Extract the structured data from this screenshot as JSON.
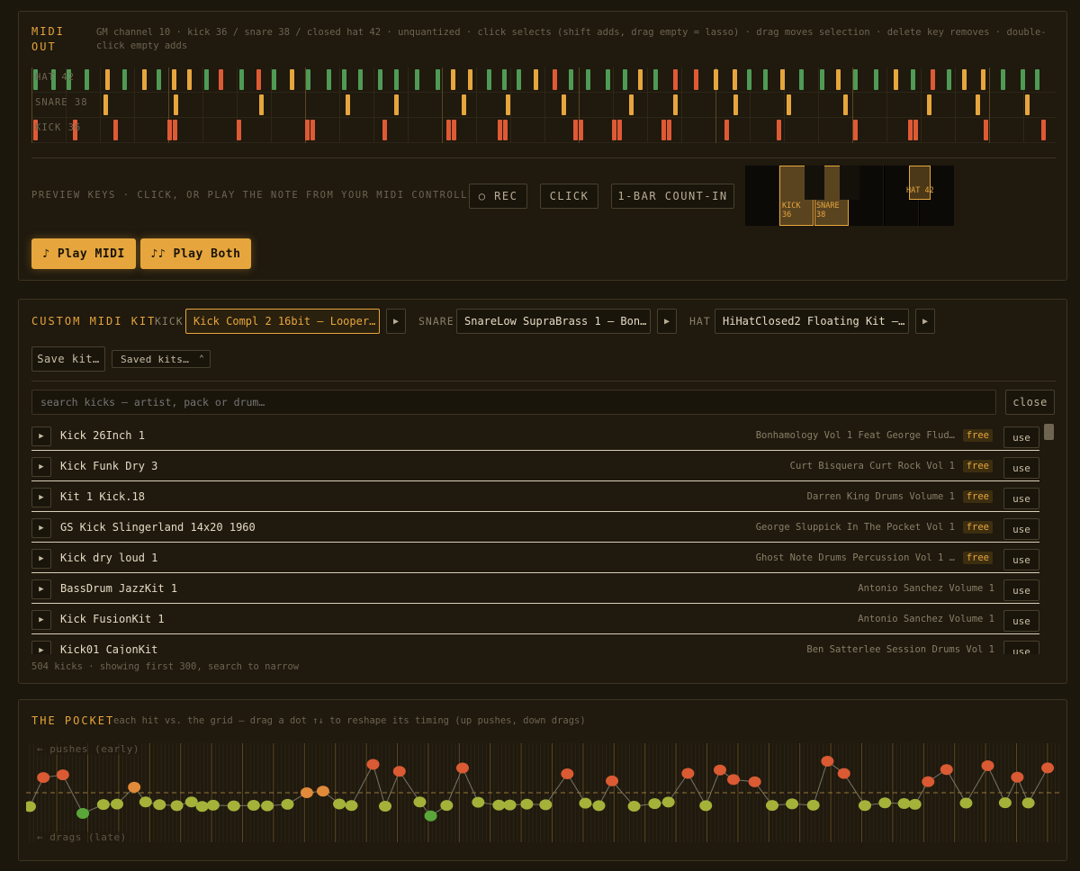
{
  "midi_out": {
    "title": "MIDI OUT",
    "hint": "GM channel 10 · kick 36 / snare 38 / closed hat 42 · unquantized · click selects (shift adds, drag empty = lasso) · drag moves selection · delete key removes · double-click empty adds",
    "lanes": [
      {
        "label": "HAT 42"
      },
      {
        "label": "SNARE 38"
      },
      {
        "label": "KICK 36"
      }
    ],
    "colors": {
      "green": "#4f9a55",
      "orange": "#e6a63d",
      "red": "#de5a35"
    },
    "preview_hint": "PREVIEW KEYS · CLICK, OR PLAY THE NOTE FROM YOUR MIDI CONTROLLER",
    "rec_label": "○ REC",
    "click_label": "CLICK",
    "countin_label": "1-BAR COUNT-IN",
    "keys": {
      "kick": "KICK 36",
      "snare": "SNARE 38",
      "hat": "HAT 42"
    },
    "play_midi": "♪ Play MIDI",
    "play_both": "♪♪ Play Both"
  },
  "kit": {
    "title": "CUSTOM MIDI KIT",
    "kick_label": "KICK",
    "kick_value": "Kick Compl 2 16bit — Looper…",
    "snare_label": "SNARE",
    "snare_value": "SnareLow SupraBrass 1 — Bon…",
    "hat_label": "HAT",
    "hat_value": "HiHatClosed2 Floating Kit —…",
    "play_icon": "▶",
    "save_label": "Save kit…",
    "saved_label": "Saved kits…",
    "search_placeholder": "search kicks — artist, pack or drum…",
    "close_label": "close",
    "free_label": "free",
    "use_label": "use",
    "rows": [
      {
        "name": "Kick 26Inch 1",
        "pack": "Bonhamology Vol 1 Feat George Flud…",
        "free": true
      },
      {
        "name": "Kick Funk Dry 3",
        "pack": "Curt Bisquera Curt Rock Vol 1",
        "free": true
      },
      {
        "name": "Kit 1 Kick.18",
        "pack": "Darren King Drums Volume 1",
        "free": true
      },
      {
        "name": "GS Kick Slingerland 14x20 1960",
        "pack": "George Sluppick In The Pocket Vol 1",
        "free": true
      },
      {
        "name": "Kick dry loud 1",
        "pack": "Ghost Note Drums Percussion Vol 1 …",
        "free": true
      },
      {
        "name": "BassDrum JazzKit 1",
        "pack": "Antonio Sanchez Volume 1",
        "free": false
      },
      {
        "name": "Kick FusionKit 1",
        "pack": "Antonio Sanchez Volume 1",
        "free": false
      },
      {
        "name": "Kick01 CajonKit",
        "pack": "Ben Satterlee Session Drums Vol 1",
        "free": false
      }
    ],
    "footer": "504 kicks · showing first 300, search to narrow"
  },
  "pocket": {
    "title": "THE POCKET",
    "hint": "each hit vs. the grid — drag a dot ↑↓ to reshape its timing (up pushes, down drags)",
    "top_label": "← pushes (early)",
    "bottom_label": "← drags (late)"
  }
}
